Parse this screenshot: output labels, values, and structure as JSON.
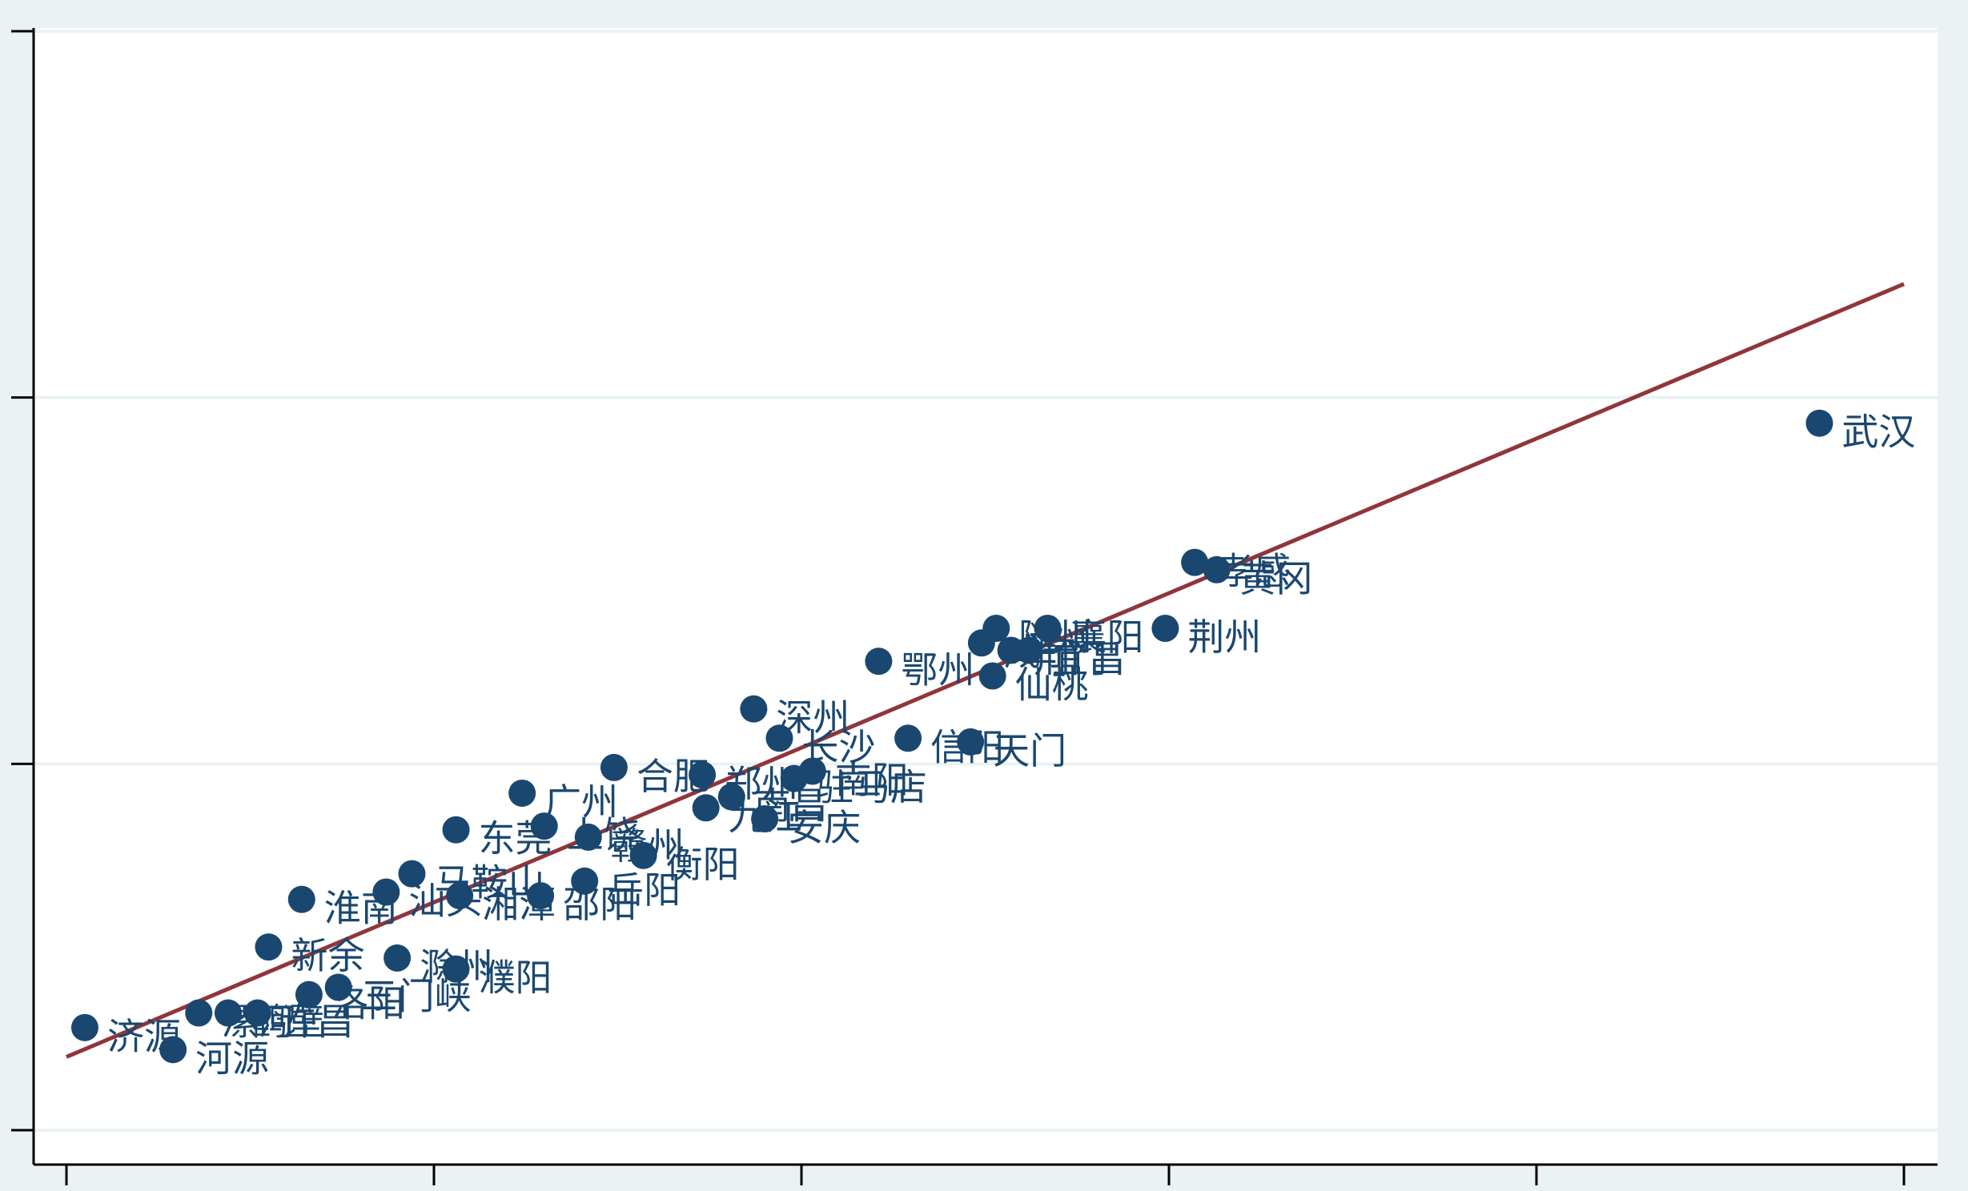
{
  "chart_data": {
    "type": "scatter",
    "title": "",
    "xlabel": "",
    "ylabel": "",
    "xlim": [
      0,
      5
    ],
    "ylim": [
      0,
      3
    ],
    "grid": true,
    "legend": "none",
    "colors": {
      "background": "#eaf2f3",
      "plot_area": "#ffffff",
      "gridline": "#eaf2f3",
      "points": "#1a476f",
      "fit_line": "#90353b",
      "axis": "#000000"
    },
    "x_ticks": [
      0,
      1,
      2,
      3,
      4,
      5
    ],
    "y_ticks": [
      0,
      1,
      2,
      3
    ],
    "fit_line": {
      "x": [
        0,
        5
      ],
      "y": [
        0.2,
        2.31
      ]
    },
    "points": [
      {
        "label": "武汉",
        "x": 4.77,
        "y": 1.93
      },
      {
        "label": "孝感",
        "x": 3.07,
        "y": 1.55
      },
      {
        "label": "黄冈",
        "x": 3.13,
        "y": 1.53
      },
      {
        "label": "荆州",
        "x": 2.99,
        "y": 1.37
      },
      {
        "label": "随州",
        "x": 2.53,
        "y": 1.37
      },
      {
        "label": "襄阳",
        "x": 2.67,
        "y": 1.37
      },
      {
        "label": "荆门",
        "x": 2.57,
        "y": 1.31
      },
      {
        "label": "宜昌",
        "x": 2.62,
        "y": 1.31
      },
      {
        "label": "咸宁",
        "x": 2.49,
        "y": 1.33
      },
      {
        "label": "鄂州",
        "x": 2.21,
        "y": 1.28
      },
      {
        "label": "仙桃",
        "x": 2.52,
        "y": 1.24
      },
      {
        "label": "天门",
        "x": 2.46,
        "y": 1.06
      },
      {
        "label": "信阳",
        "x": 2.29,
        "y": 1.07
      },
      {
        "label": "深州",
        "x": 1.87,
        "y": 1.15
      },
      {
        "label": "长沙",
        "x": 1.94,
        "y": 1.07
      },
      {
        "label": "合肥",
        "x": 1.49,
        "y": 0.99
      },
      {
        "label": "南阳",
        "x": 2.03,
        "y": 0.98
      },
      {
        "label": "驻马店",
        "x": 1.98,
        "y": 0.96
      },
      {
        "label": "郑州",
        "x": 1.73,
        "y": 0.97
      },
      {
        "label": "安庆",
        "x": 1.9,
        "y": 0.85
      },
      {
        "label": "九江",
        "x": 1.74,
        "y": 0.88
      },
      {
        "label": "南昌",
        "x": 1.81,
        "y": 0.91
      },
      {
        "label": "东莞",
        "x": 1.06,
        "y": 0.82
      },
      {
        "label": "广州",
        "x": 1.24,
        "y": 0.92
      },
      {
        "label": "上饶",
        "x": 1.3,
        "y": 0.83
      },
      {
        "label": "赣州",
        "x": 1.42,
        "y": 0.8
      },
      {
        "label": "衡阳",
        "x": 1.57,
        "y": 0.75
      },
      {
        "label": "岳阳",
        "x": 1.41,
        "y": 0.68
      },
      {
        "label": "邵阳",
        "x": 1.29,
        "y": 0.64
      },
      {
        "label": "马鞍山",
        "x": 0.94,
        "y": 0.7
      },
      {
        "label": "湘潭",
        "x": 1.07,
        "y": 0.64
      },
      {
        "label": "汕头",
        "x": 0.87,
        "y": 0.65
      },
      {
        "label": "淮南",
        "x": 0.64,
        "y": 0.63
      },
      {
        "label": "新余",
        "x": 0.55,
        "y": 0.5
      },
      {
        "label": "滁州",
        "x": 0.9,
        "y": 0.47
      },
      {
        "label": "濮阳",
        "x": 1.06,
        "y": 0.44
      },
      {
        "label": "三门峡",
        "x": 0.74,
        "y": 0.39
      },
      {
        "label": "洛阳",
        "x": 0.66,
        "y": 0.37
      },
      {
        "label": "许昌",
        "x": 0.52,
        "y": 0.32
      },
      {
        "label": "鹤壁",
        "x": 0.44,
        "y": 0.32
      },
      {
        "label": "漯河",
        "x": 0.36,
        "y": 0.32
      },
      {
        "label": "济源",
        "x": 0.05,
        "y": 0.28
      },
      {
        "label": "河源",
        "x": 0.29,
        "y": 0.22
      }
    ]
  }
}
